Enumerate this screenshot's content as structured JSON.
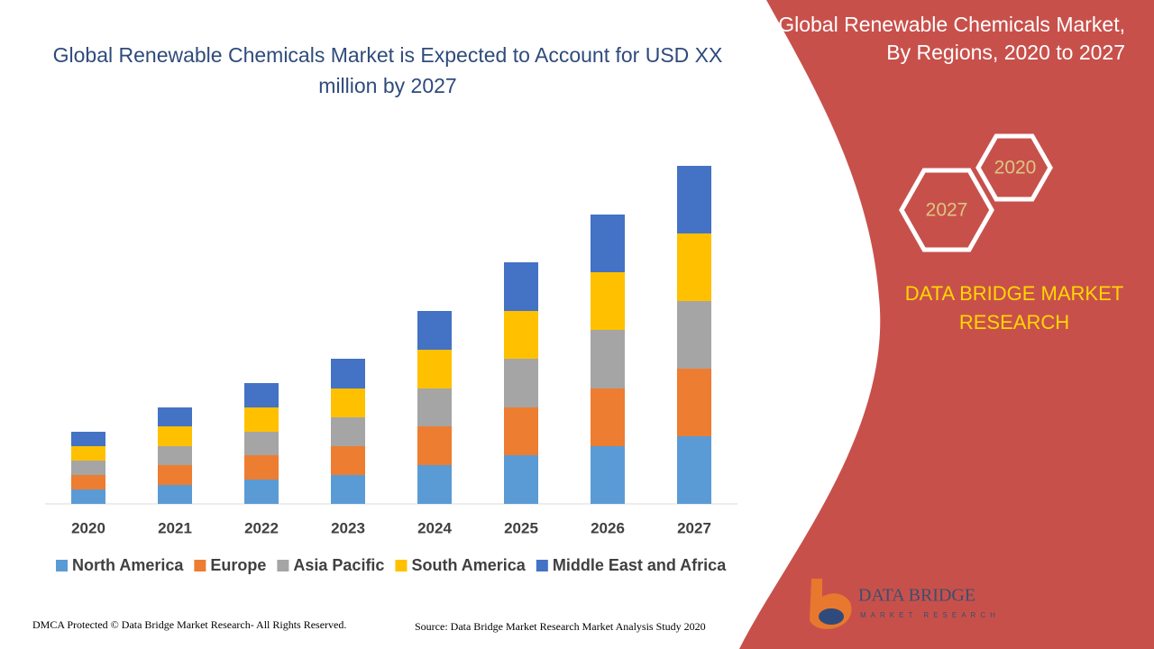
{
  "chart_data": {
    "type": "stacked-bar",
    "title": "Global Renewable Chemicals Market is Expected to Account for USD XX million by 2027",
    "categories": [
      "2020",
      "2021",
      "2022",
      "2023",
      "2024",
      "2025",
      "2026",
      "2027"
    ],
    "series": [
      {
        "name": "North America",
        "color": "#5b9bd5",
        "values": [
          16,
          21,
          27,
          32,
          43,
          54,
          64,
          75
        ]
      },
      {
        "name": "Europe",
        "color": "#ed7d31",
        "values": [
          16,
          22,
          27,
          32,
          43,
          53,
          64,
          75
        ]
      },
      {
        "name": "Asia Pacific",
        "color": "#a5a5a5",
        "values": [
          16,
          21,
          26,
          32,
          42,
          54,
          65,
          75
        ]
      },
      {
        "name": "South America",
        "color": "#ffc000",
        "values": [
          16,
          22,
          27,
          32,
          43,
          53,
          64,
          75
        ]
      },
      {
        "name": "Middle East and Africa",
        "color": "#4472c4",
        "values": [
          16,
          21,
          27,
          33,
          43,
          54,
          64,
          75
        ]
      }
    ],
    "legend": "bottom"
  },
  "panel": {
    "title": "Global Renewable Chemicals Market, By Regions, 2020 to 2027",
    "hex_labels": [
      "2020",
      "2027"
    ],
    "brand": "DATA BRIDGE MARKET RESEARCH",
    "logo_name": "DATA BRIDGE",
    "logo_tagline": "MARKET RESEARCH"
  },
  "footer": {
    "copyright": "DMCA Protected © Data Bridge Market Research- All Rights Reserved.",
    "source": "Source: Data Bridge Market Research Market Analysis Study 2020"
  }
}
